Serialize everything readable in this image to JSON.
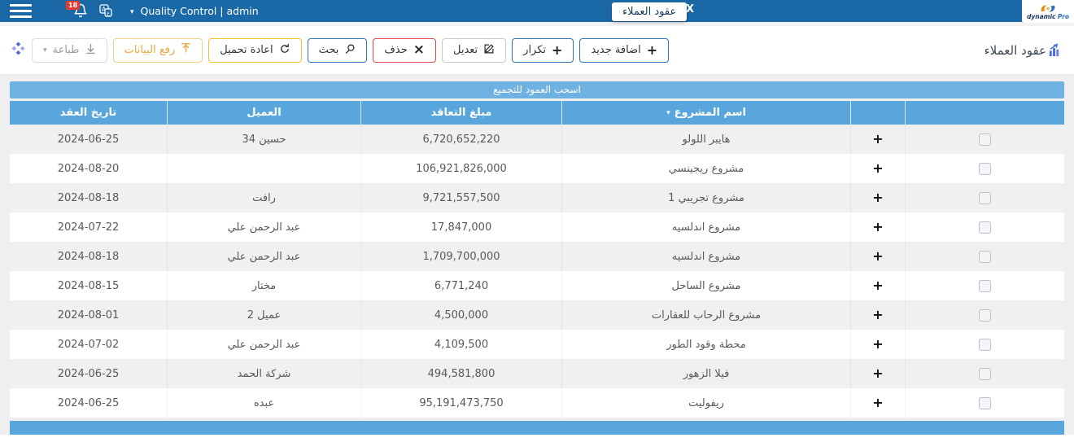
{
  "topbar": {
    "notifications_count": "18",
    "user_menu": "Quality Control | admin",
    "tab": {
      "label": "عقود العملاء",
      "close": "X"
    },
    "logo": {
      "word1": "dynamic",
      "word2": "Pro"
    }
  },
  "toolbar": {
    "title": "عقود العملاء",
    "buttons": {
      "add": "اضافة جديد",
      "duplicate": "تكرار",
      "edit": "تعديل",
      "delete": "حذف",
      "search": "بحث",
      "reload": "اعادة تحميل",
      "upload": "رفع البيانات",
      "print": "طباعة"
    }
  },
  "table": {
    "group_hint": "اسحب العمود للتجميع",
    "expand_symbol": "+",
    "sort_caret": "▾",
    "columns": {
      "project": "اسم المشروع",
      "amount": "مبلغ التعاقد",
      "client": "العميل",
      "date": "تاريخ العقد"
    },
    "rows": [
      {
        "project": "هايبر اللولو",
        "amount": "6,720,652,220",
        "client": "حسين 34",
        "date": "2024-06-25"
      },
      {
        "project": "مشروع ريجينسي",
        "amount": "106,921,826,000",
        "client": "",
        "date": "2024-08-20"
      },
      {
        "project": "مشروع تجريبي 1",
        "amount": "9,721,557,500",
        "client": "رافت",
        "date": "2024-08-18"
      },
      {
        "project": "مشروع اندلسيه",
        "amount": "17,847,000",
        "client": "عبد الرحمن علي",
        "date": "2024-07-22"
      },
      {
        "project": "مشروع اندلسيه",
        "amount": "1,709,700,000",
        "client": "عبد الرحمن علي",
        "date": "2024-08-18"
      },
      {
        "project": "مشروع الساحل",
        "amount": "6,771,240",
        "client": "مختار",
        "date": "2024-08-15"
      },
      {
        "project": "مشروع الرحاب للعقارات",
        "amount": "4,500,000",
        "client": "عميل 2",
        "date": "2024-08-01"
      },
      {
        "project": "محطة وقود الطور",
        "amount": "4,109,500",
        "client": "عبد الرحمن علي",
        "date": "2024-07-02"
      },
      {
        "project": "فيلا الزهور",
        "amount": "494,581,800",
        "client": "شركة الحمد",
        "date": "2024-06-25"
      },
      {
        "project": "ريفوليت",
        "amount": "95,191,473,750",
        "client": "عبده",
        "date": "2024-06-25"
      }
    ]
  },
  "colors": {
    "topbar": "#1a69a6",
    "table_header": "#58a6dc",
    "group_banner": "#6fb2e2",
    "accent_blue": "#2e73b8",
    "danger_red": "#dd4b4b",
    "warning_yellow": "#efc02f",
    "title_icon_blue": "#4a6bd8"
  }
}
